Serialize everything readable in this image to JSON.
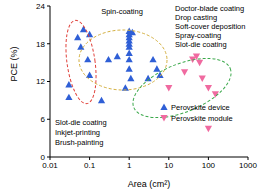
{
  "chart_data": {
    "type": "scatter",
    "x_label": "Area (cm²)",
    "y_label": "PCE (%)",
    "log": "x",
    "xlim": [
      0.01,
      1000
    ],
    "xticks": [
      0.01,
      0.1,
      1,
      10,
      100,
      1000
    ],
    "ylim": [
      0,
      24
    ],
    "yticks": [
      0,
      6,
      12,
      18,
      24
    ],
    "legend": "lower right",
    "annotations": [
      "Spin-coating",
      "Doctor-blade coating",
      "Drop casting",
      "Soft-cover deposition",
      "Spray-coating",
      "Slot-die coating",
      "Slot-die coating",
      "Inkjet-printing",
      "Brush-painting"
    ],
    "series": [
      {
        "name": "Perovskite device",
        "color": "#2f5fd6",
        "marker": "triangle",
        "x": [
          0.03,
          0.03,
          0.05,
          0.06,
          0.07,
          0.09,
          0.1,
          0.1,
          0.2,
          0.3,
          0.5,
          0.8,
          1,
          1,
          1,
          1,
          1,
          1,
          1,
          1,
          1,
          1.1,
          1.2,
          3,
          4,
          5,
          6
        ],
        "values": [
          11.5,
          9.5,
          19,
          17.5,
          20.3,
          15.5,
          13,
          19.5,
          9,
          15.5,
          16,
          11,
          20,
          19.5,
          19,
          18.5,
          18,
          17.5,
          16.5,
          15.5,
          14,
          12.5,
          19.8,
          12.5,
          15.5,
          14,
          13
        ]
      },
      {
        "name": "Perovskite module",
        "color": "#f06aa0",
        "marker": "triangle-down",
        "x": [
          10,
          25,
          40,
          50,
          60,
          70,
          100,
          150,
          100
        ],
        "values": [
          11,
          13.5,
          15.5,
          16,
          15,
          12.5,
          11,
          10,
          4.5
        ]
      }
    ]
  }
}
